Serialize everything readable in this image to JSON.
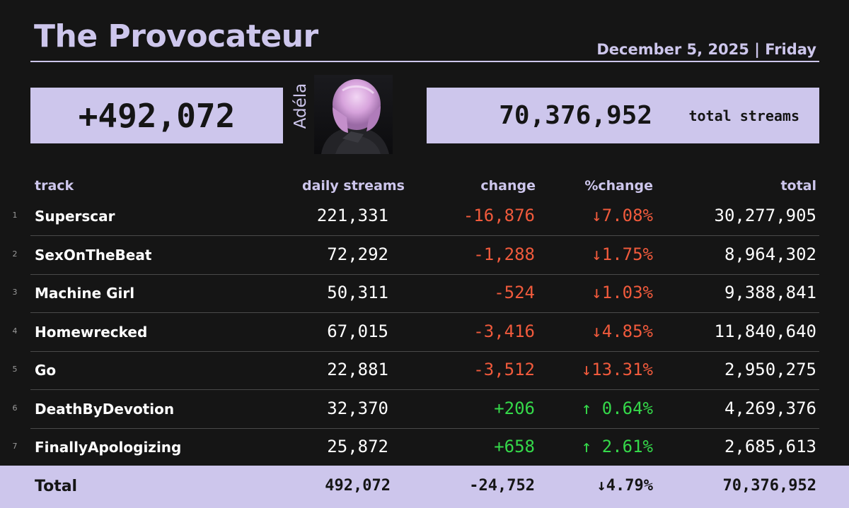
{
  "header": {
    "title": "The Provocateur",
    "date": "December 5, 2025 | Friday"
  },
  "summary": {
    "daily_change": "+492,072",
    "artist": "Adéla",
    "total_streams": "70,376,952",
    "total_label": "total streams"
  },
  "columns": {
    "track": "track",
    "daily": "daily streams",
    "change": "change",
    "pct": "%change",
    "total": "total"
  },
  "rows": [
    {
      "rank": "1",
      "track": "Superscar",
      "daily": "221,331",
      "change": "-16,876",
      "pct": "↓7.08%",
      "total": "30,277,905",
      "trend": "down"
    },
    {
      "rank": "2",
      "track": "SexOnTheBeat",
      "daily": "72,292",
      "change": "-1,288",
      "pct": "↓1.75%",
      "total": "8,964,302",
      "trend": "down"
    },
    {
      "rank": "3",
      "track": "Machine Girl",
      "daily": "50,311",
      "change": "-524",
      "pct": "↓1.03%",
      "total": "9,388,841",
      "trend": "down"
    },
    {
      "rank": "4",
      "track": "Homewrecked",
      "daily": "67,015",
      "change": "-3,416",
      "pct": "↓4.85%",
      "total": "11,840,640",
      "trend": "down"
    },
    {
      "rank": "5",
      "track": "Go",
      "daily": "22,881",
      "change": "-3,512",
      "pct": "↓13.31%",
      "total": "2,950,275",
      "trend": "down"
    },
    {
      "rank": "6",
      "track": "DeathByDevotion",
      "daily": "32,370",
      "change": "+206",
      "pct": "↑ 0.64%",
      "total": "4,269,376",
      "trend": "up"
    },
    {
      "rank": "7",
      "track": "FinallyApologizing",
      "daily": "25,872",
      "change": "+658",
      "pct": "↑ 2.61%",
      "total": "2,685,613",
      "trend": "up"
    }
  ],
  "footer": {
    "label": "Total",
    "daily": "492,072",
    "change": "-24,752",
    "pct": "↓4.79%",
    "total": "70,376,952"
  },
  "colors": {
    "accent": "#cdc6ec",
    "background": "#151515",
    "negative": "#f05a3c",
    "positive": "#35d94a"
  }
}
